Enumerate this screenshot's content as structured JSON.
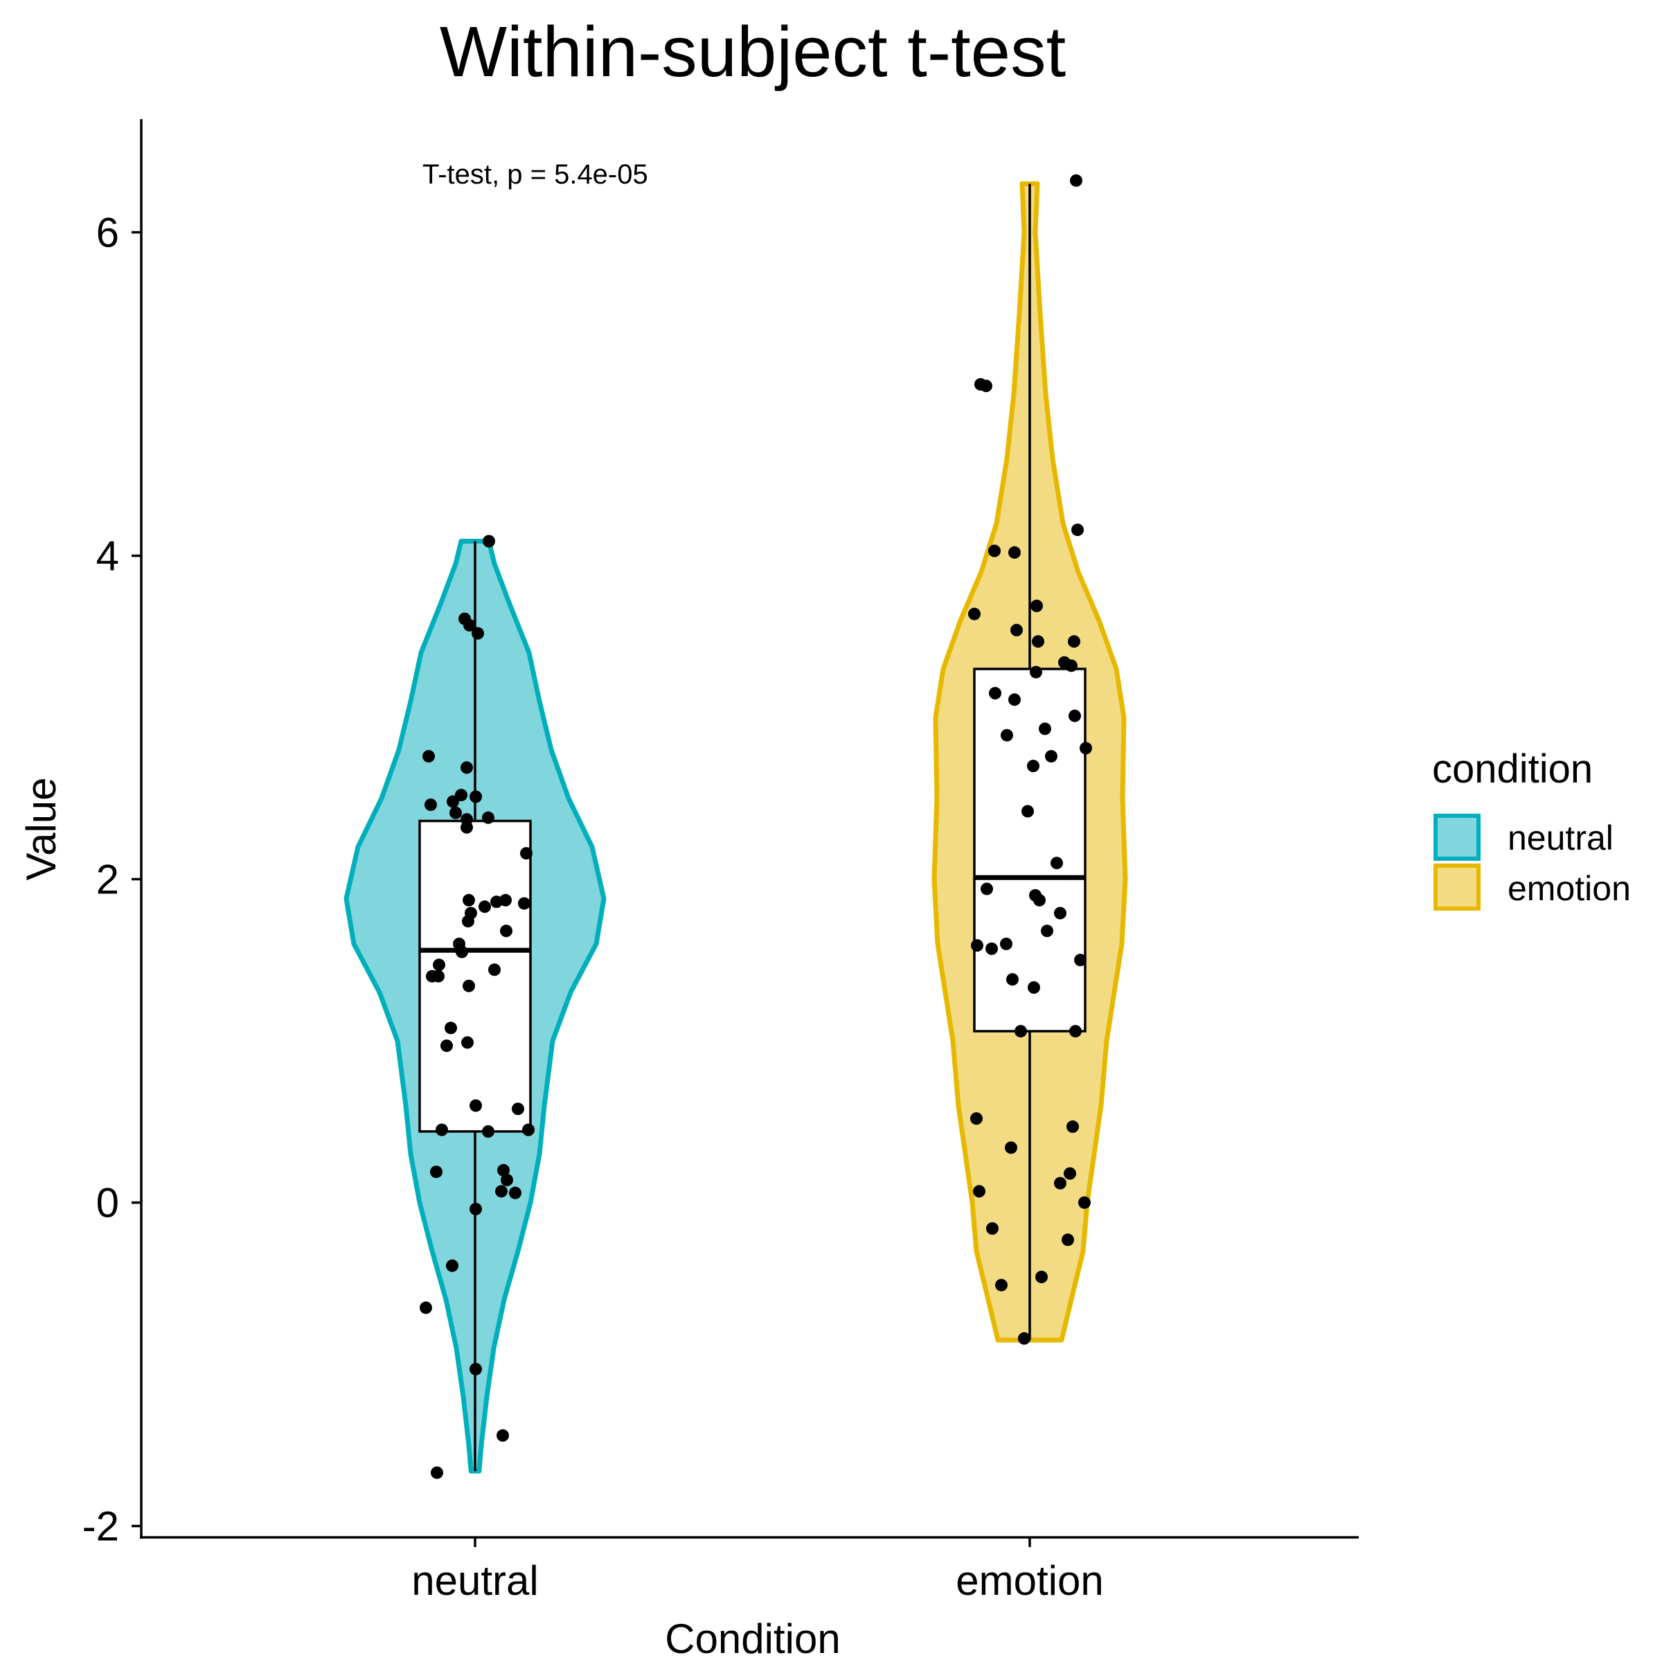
{
  "chart_data": {
    "type": "violin",
    "title": "Within-subject t-test",
    "xlabel": "Condition",
    "ylabel": "Value",
    "ylim": [
      -2.07,
      6.7
    ],
    "yticks": [
      "-2",
      "0",
      "2",
      "4",
      "6"
    ],
    "ytick_values": [
      -2,
      0,
      2,
      4,
      6
    ],
    "categories": [
      "neutral",
      "emotion"
    ],
    "grid": false,
    "annotation": "T-test, p = 5.4e-05",
    "legend": {
      "title": "condition",
      "position": "right",
      "entries": [
        {
          "label": "neutral",
          "fill": "#80D6DC",
          "stroke": "#00AFBB"
        },
        {
          "label": "emotion",
          "fill": "#F2DB82",
          "stroke": "#E7B800"
        }
      ]
    },
    "series": [
      {
        "name": "neutral",
        "fill": "#80D6DC",
        "stroke": "#00AFBB",
        "violin": {
          "min": -1.66,
          "max": 4.09,
          "profile": [
            [
              -1.66,
              0.058
            ],
            [
              -1.5,
              0.09
            ],
            [
              -1.2,
              0.17
            ],
            [
              -0.9,
              0.27
            ],
            [
              -0.6,
              0.42
            ],
            [
              -0.3,
              0.62
            ],
            [
              0.0,
              0.8
            ],
            [
              0.3,
              0.93
            ],
            [
              0.6,
              1.0
            ],
            [
              1.0,
              1.12
            ],
            [
              1.3,
              1.38
            ],
            [
              1.6,
              1.75
            ],
            [
              1.88,
              1.86
            ],
            [
              2.2,
              1.69
            ],
            [
              2.5,
              1.35
            ],
            [
              2.8,
              1.1
            ],
            [
              3.1,
              0.93
            ],
            [
              3.4,
              0.78
            ],
            [
              3.7,
              0.5
            ],
            [
              3.95,
              0.28
            ],
            [
              4.09,
              0.2
            ]
          ]
        },
        "box": {
          "q1": 0.44,
          "median": 1.56,
          "q3": 2.36,
          "whisker_low": -1.66,
          "whisker_high": 4.09
        },
        "points": [
          [
            0.2,
            4.09
          ],
          [
            -0.15,
            3.61
          ],
          [
            -0.08,
            3.57
          ],
          [
            0.04,
            3.52
          ],
          [
            -0.67,
            2.76
          ],
          [
            -0.12,
            2.69
          ],
          [
            -0.64,
            2.46
          ],
          [
            -0.32,
            2.48
          ],
          [
            -0.2,
            2.52
          ],
          [
            0.01,
            2.51
          ],
          [
            -0.28,
            2.41
          ],
          [
            -0.12,
            2.37
          ],
          [
            -0.12,
            2.32
          ],
          [
            0.19,
            2.38
          ],
          [
            0.74,
            2.16
          ],
          [
            0.14,
            1.83
          ],
          [
            0.31,
            1.86
          ],
          [
            0.44,
            1.87
          ],
          [
            0.71,
            1.85
          ],
          [
            -0.09,
            1.87
          ],
          [
            -0.06,
            1.79
          ],
          [
            -0.1,
            1.74
          ],
          [
            0.45,
            1.68
          ],
          [
            -0.23,
            1.6
          ],
          [
            -0.19,
            1.55
          ],
          [
            0.28,
            1.44
          ],
          [
            -0.52,
            1.47
          ],
          [
            -0.62,
            1.4
          ],
          [
            -0.53,
            1.4
          ],
          [
            -0.09,
            1.34
          ],
          [
            -0.35,
            1.08
          ],
          [
            -0.41,
            0.97
          ],
          [
            -0.11,
            0.99
          ],
          [
            0.01,
            0.6
          ],
          [
            0.62,
            0.58
          ],
          [
            -0.48,
            0.45
          ],
          [
            0.19,
            0.44
          ],
          [
            0.77,
            0.45
          ],
          [
            -0.56,
            0.19
          ],
          [
            0.41,
            0.2
          ],
          [
            0.46,
            0.14
          ],
          [
            0.38,
            0.07
          ],
          [
            0.58,
            0.06
          ],
          [
            0.01,
            -0.04
          ],
          [
            -0.33,
            -0.39
          ],
          [
            -0.71,
            -0.65
          ],
          [
            0.01,
            -1.03
          ],
          [
            0.4,
            -1.44
          ],
          [
            -0.55,
            -1.67
          ]
        ]
      },
      {
        "name": "emotion",
        "fill": "#F2DB82",
        "stroke": "#E7B800",
        "violin": {
          "min": -0.85,
          "max": 6.3,
          "profile": [
            [
              -0.85,
              0.46
            ],
            [
              -0.6,
              0.6
            ],
            [
              -0.3,
              0.77
            ],
            [
              0.0,
              0.83
            ],
            [
              0.3,
              0.93
            ],
            [
              0.6,
              1.03
            ],
            [
              1.0,
              1.11
            ],
            [
              1.3,
              1.22
            ],
            [
              1.6,
              1.33
            ],
            [
              2.0,
              1.38
            ],
            [
              2.5,
              1.34
            ],
            [
              3.0,
              1.36
            ],
            [
              3.3,
              1.25
            ],
            [
              3.6,
              1.0
            ],
            [
              3.9,
              0.7
            ],
            [
              4.2,
              0.48
            ],
            [
              4.6,
              0.33
            ],
            [
              5.0,
              0.23
            ],
            [
              5.5,
              0.15
            ],
            [
              6.0,
              0.08
            ],
            [
              6.3,
              0.11
            ]
          ]
        },
        "box": {
          "q1": 1.06,
          "median": 2.01,
          "q3": 3.3,
          "whisker_low": -0.85,
          "whisker_high": 6.3
        },
        "points": [
          [
            0.67,
            6.32
          ],
          [
            -0.71,
            5.06
          ],
          [
            -0.63,
            5.05
          ],
          [
            0.69,
            4.16
          ],
          [
            -0.51,
            4.03
          ],
          [
            -0.22,
            4.02
          ],
          [
            0.1,
            3.69
          ],
          [
            -0.8,
            3.64
          ],
          [
            -0.19,
            3.54
          ],
          [
            0.12,
            3.47
          ],
          [
            0.64,
            3.47
          ],
          [
            0.09,
            3.28
          ],
          [
            0.5,
            3.34
          ],
          [
            0.6,
            3.32
          ],
          [
            -0.5,
            3.15
          ],
          [
            -0.22,
            3.11
          ],
          [
            0.65,
            3.01
          ],
          [
            0.81,
            2.81
          ],
          [
            -0.33,
            2.89
          ],
          [
            0.22,
            2.93
          ],
          [
            0.31,
            2.76
          ],
          [
            0.05,
            2.7
          ],
          [
            -0.03,
            2.42
          ],
          [
            0.39,
            2.1
          ],
          [
            -0.62,
            1.94
          ],
          [
            0.08,
            1.9
          ],
          [
            0.14,
            1.87
          ],
          [
            0.44,
            1.79
          ],
          [
            0.25,
            1.68
          ],
          [
            -0.76,
            1.59
          ],
          [
            -0.55,
            1.57
          ],
          [
            -0.34,
            1.6
          ],
          [
            -0.25,
            1.38
          ],
          [
            0.73,
            1.5
          ],
          [
            0.06,
            1.33
          ],
          [
            -0.13,
            1.06
          ],
          [
            0.66,
            1.06
          ],
          [
            -0.77,
            0.52
          ],
          [
            0.62,
            0.47
          ],
          [
            -0.27,
            0.34
          ],
          [
            0.58,
            0.18
          ],
          [
            0.44,
            0.12
          ],
          [
            -0.73,
            0.07
          ],
          [
            0.79,
            0.0
          ],
          [
            -0.54,
            -0.16
          ],
          [
            0.55,
            -0.23
          ],
          [
            -0.41,
            -0.51
          ],
          [
            0.17,
            -0.46
          ],
          [
            -0.08,
            -0.84
          ]
        ]
      }
    ]
  }
}
